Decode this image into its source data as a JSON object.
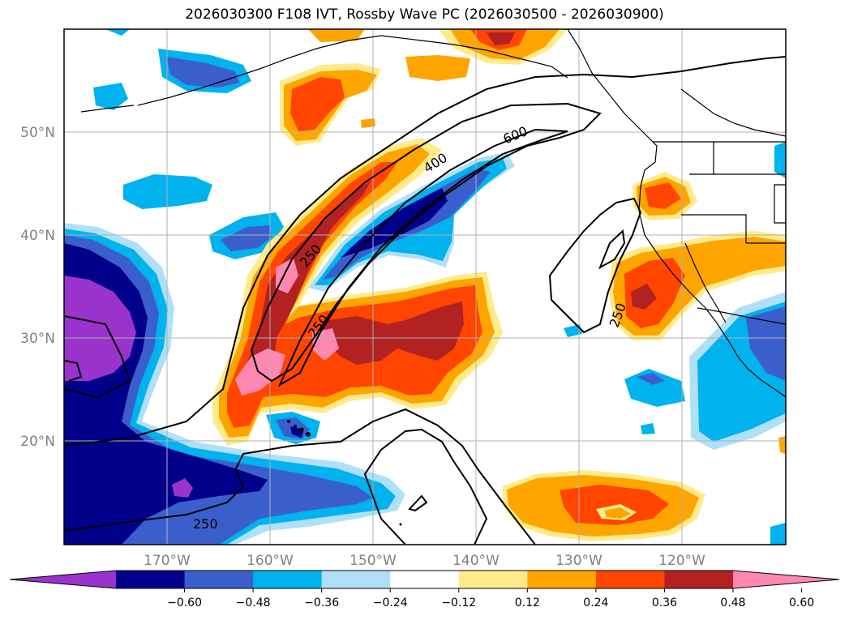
{
  "title": "2026030300 F108 IVT, Rossby Wave PC (2026030500 - 2026030900)",
  "map": {
    "lat_labels": [
      "50°N",
      "40°N",
      "30°N",
      "20°N"
    ],
    "lon_labels": [
      "170°W",
      "160°W",
      "150°W",
      "140°W",
      "130°W",
      "120°W"
    ],
    "contour_labels": [
      "600",
      "400",
      "250",
      "250",
      "250",
      "250"
    ],
    "colors": {
      "neg_extreme": "#9933cc",
      "neg_048": "#00008b",
      "neg_036": "#3a5fcd",
      "neg_024": "#00b2ee",
      "neg_012": "#b0e0f8",
      "pos_012": "#ffeb8a",
      "pos_024": "#ffa500",
      "pos_036": "#ff4500",
      "pos_048": "#b22222",
      "pos_extreme": "#ff88b0"
    }
  },
  "colorbar": {
    "ticks": [
      "−0.60",
      "−0.48",
      "−0.36",
      "−0.24",
      "−0.12",
      "0.12",
      "0.24",
      "0.36",
      "0.48",
      "0.60"
    ],
    "colors": [
      "#9933cc",
      "#00008b",
      "#3a5fcd",
      "#00b2ee",
      "#b0e0f8",
      "#ffffff",
      "#ffeb8a",
      "#ffa500",
      "#ff4500",
      "#b22222",
      "#ff88b0"
    ]
  }
}
